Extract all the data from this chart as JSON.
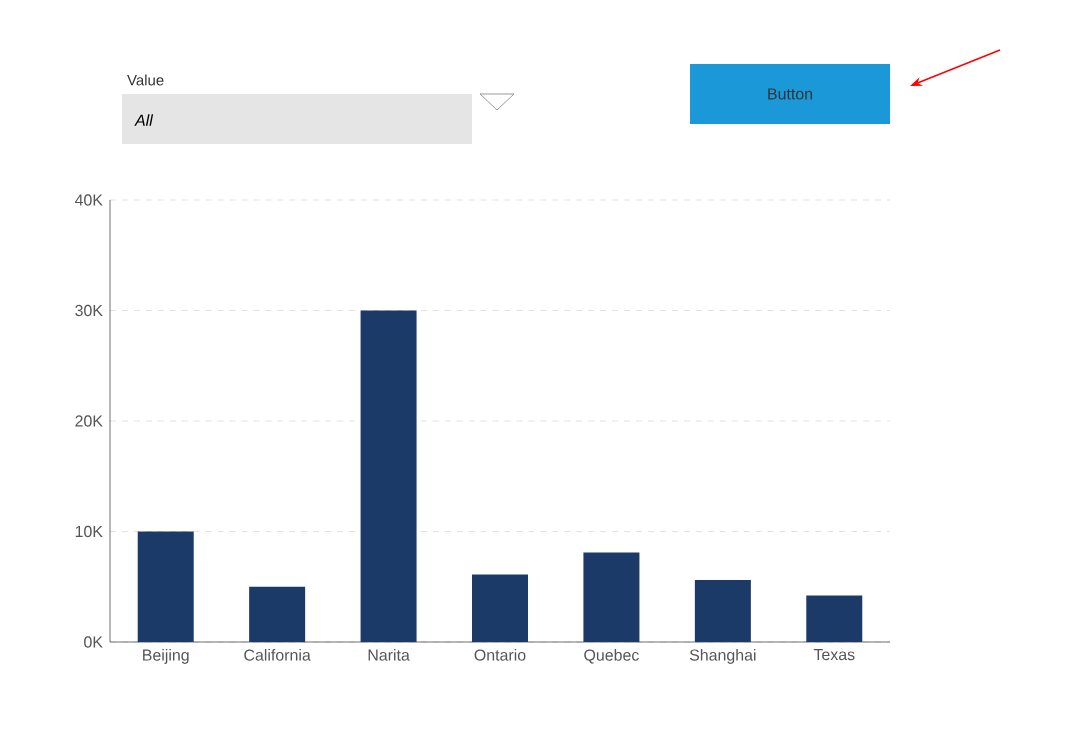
{
  "chart_data": {
    "type": "bar",
    "categories": [
      "Beijing",
      "California",
      "Narita",
      "Ontario",
      "Quebec",
      "Shanghai",
      "Texas"
    ],
    "values": [
      10000,
      5000,
      30000,
      6100,
      8100,
      5600,
      4200
    ],
    "color": "#1b3a68",
    "ylim": [
      0,
      40000
    ],
    "yticks": [
      {
        "value": 0,
        "label": "0K"
      },
      {
        "value": 10000,
        "label": "10K"
      },
      {
        "value": 20000,
        "label": "20K"
      },
      {
        "value": 30000,
        "label": "30K"
      },
      {
        "value": 40000,
        "label": "40K"
      }
    ],
    "grid": "y",
    "annotations": [
      "Value",
      "All",
      "Button"
    ]
  }
}
